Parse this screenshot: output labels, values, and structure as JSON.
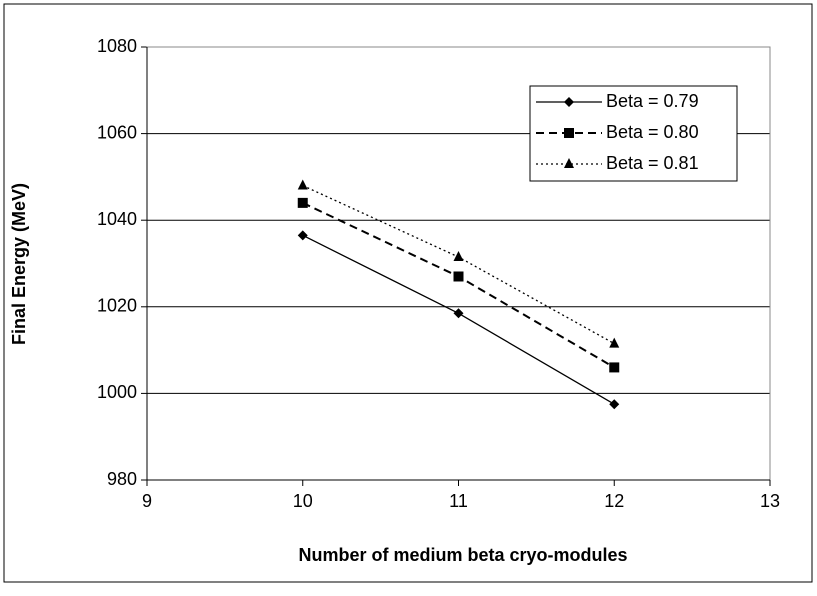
{
  "chart_data": {
    "type": "line",
    "xlabel": "Number of medium beta cryo-modules",
    "ylabel": "Final Energy (MeV)",
    "x": [
      10,
      11,
      12
    ],
    "series": [
      {
        "name": "Beta = 0.79",
        "color": "#000000",
        "linestyle": "solid",
        "marker": "diamond",
        "values": [
          1036.5,
          1018.5,
          997.5
        ]
      },
      {
        "name": "Beta = 0.80",
        "color": "#000000",
        "linestyle": "dashed",
        "marker": "square",
        "values": [
          1044,
          1027,
          1006
        ]
      },
      {
        "name": "Beta = 0.81",
        "color": "#000000",
        "linestyle": "dotted",
        "marker": "triangle",
        "values": [
          1048,
          1031.5,
          1011.5
        ]
      }
    ],
    "xlim": [
      9,
      13
    ],
    "xticks": [
      9,
      10,
      11,
      12,
      13
    ],
    "ylim": [
      980,
      1080
    ],
    "yticks": [
      980,
      1000,
      1020,
      1040,
      1060,
      1080
    ],
    "grid": true,
    "legend": "upper right"
  }
}
